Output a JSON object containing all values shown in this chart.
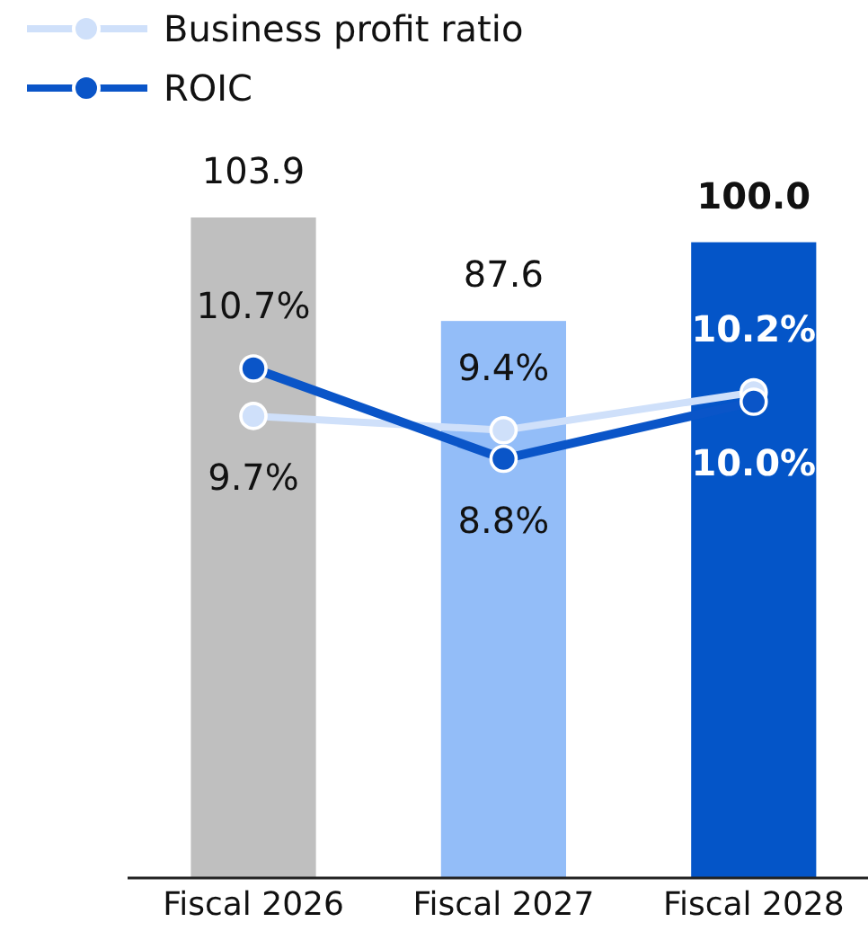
{
  "chart_data": {
    "type": "bar",
    "categories": [
      "Fiscal 2026",
      "Fiscal 2027",
      "Fiscal 2028"
    ],
    "series": [
      {
        "colors": [
          "#bfbfbf",
          "#93bdf8",
          "#0455c8"
        ],
        "values": [
          103.9,
          87.6,
          100.0
        ],
        "value_labels": [
          "103.9",
          "87.6",
          "100.0"
        ]
      },
      {
        "name": "Business profit ratio",
        "type": "line",
        "axis": "y2",
        "color": "#cfe0fa",
        "values": [
          9.7,
          9.4,
          10.2
        ],
        "value_labels": [
          "9.7%",
          "9.4%",
          "10.2%"
        ]
      },
      {
        "name": "ROIC",
        "type": "line",
        "axis": "y2",
        "color": "#0a55c8",
        "values": [
          10.7,
          8.8,
          10.0
        ],
        "value_labels": [
          "10.7%",
          "8.8%",
          "10.0%"
        ]
      }
    ],
    "legend": "top left",
    "marker": "circle"
  }
}
